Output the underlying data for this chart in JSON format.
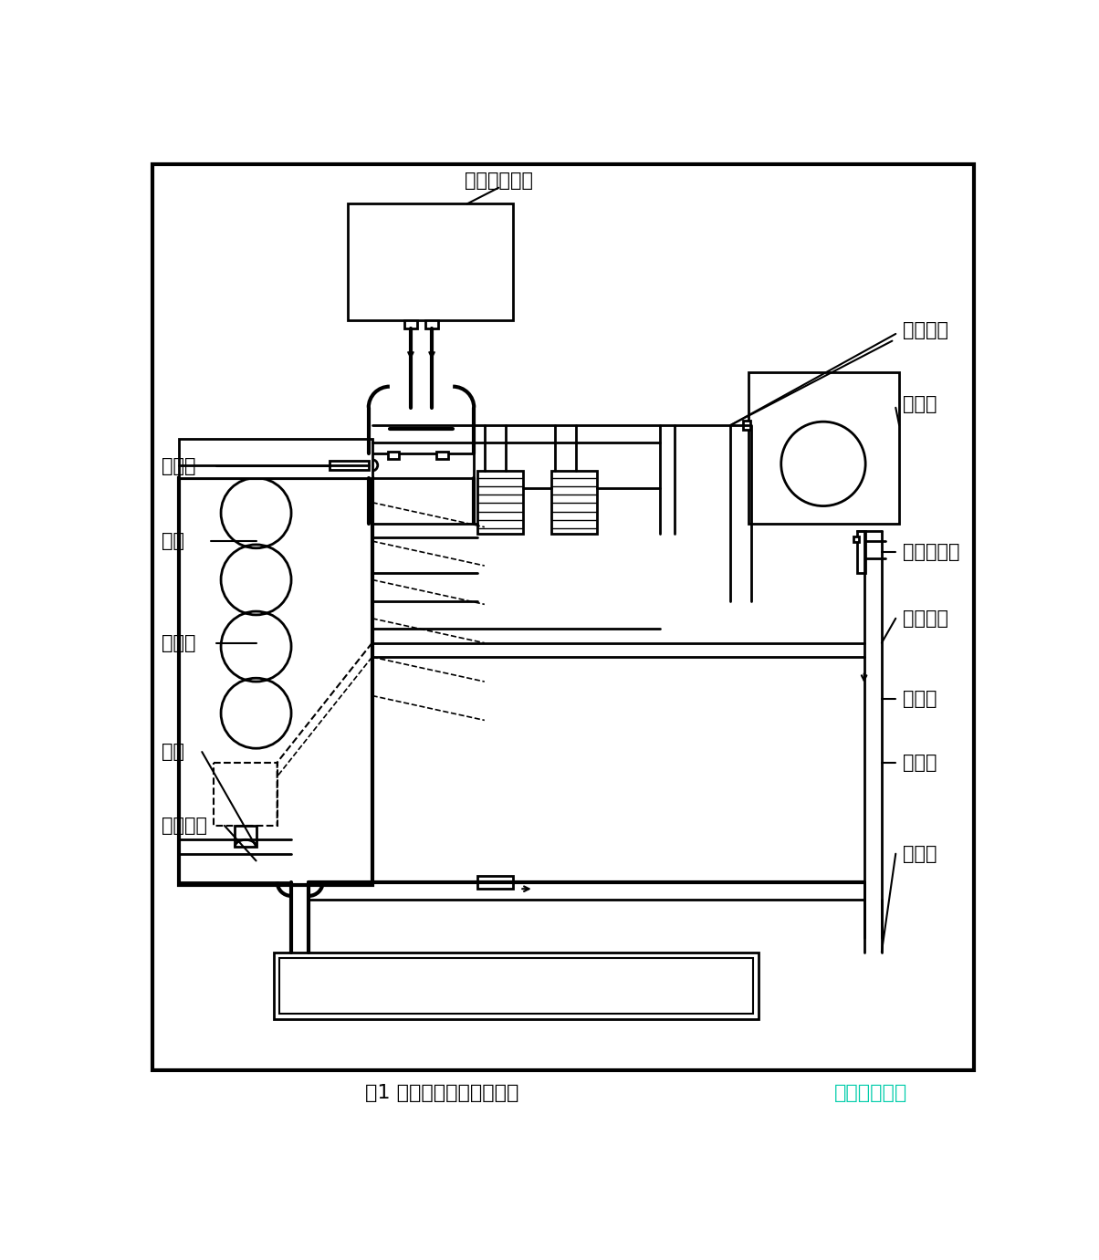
{
  "title": "图1 发动机冷却系统结构图",
  "watermark": "彩虹网址导航",
  "watermark_color": "#00CCAA",
  "background_color": "#FFFFFF",
  "border_color": "#000000",
  "labels": {
    "heater": "暖文热交换器",
    "coolant_pipe_top": "冷却液管",
    "expansion_tank": "膨胀罐",
    "throttle": "节汽门",
    "cylinder_head": "缸盖",
    "thermostat": "节温器",
    "water_pump": "水泵",
    "coolant_pipe_bottom": "冷却液管",
    "oil_cooler": "机油冷却器",
    "intake_manifold": "进气歧管",
    "outlet_pipe": "出水管",
    "inlet_pipe": "进水管",
    "radiator": "散热器"
  }
}
